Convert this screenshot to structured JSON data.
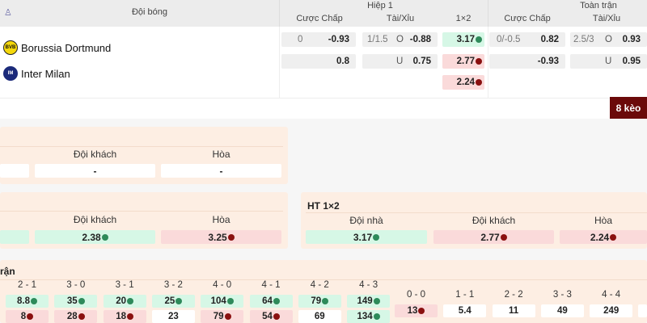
{
  "header": {
    "team_col": "Đội bóng",
    "first_half": "Hiệp 1",
    "full_time": "Toàn trận",
    "handicap": "Cược Chấp",
    "over_under": "Tài/Xỉu",
    "one_x_two": "1×2"
  },
  "teams": [
    {
      "name": "Borussia Dortmund",
      "logo_color": "#f5d80b"
    },
    {
      "name": "Inter Milan",
      "logo_color": "#1b2a7a"
    }
  ],
  "first_half": {
    "handicap": [
      {
        "line": "0",
        "odds": "-0.93"
      },
      {
        "line": "",
        "odds": "0.8"
      }
    ],
    "over_under": [
      {
        "line": "1/1.5",
        "side": "O",
        "odds": "-0.88"
      },
      {
        "line": "",
        "side": "U",
        "odds": "0.75"
      }
    ],
    "one_x_two": [
      {
        "odds": "3.17",
        "trend": "up"
      },
      {
        "odds": "2.77",
        "trend": "down"
      },
      {
        "odds": "2.24",
        "trend": "down"
      }
    ]
  },
  "full_time": {
    "handicap": [
      {
        "line": "0/-0.5",
        "odds": "0.82"
      },
      {
        "line": "",
        "odds": "-0.93"
      }
    ],
    "over_under": [
      {
        "line": "2.5/3",
        "side": "O",
        "odds": "0.93"
      },
      {
        "line": "",
        "side": "U",
        "odds": "0.95"
      }
    ]
  },
  "more_button": "8 kèo",
  "panel1": {
    "labels": [
      "Đội khách",
      "Hòa"
    ],
    "values": [
      "-",
      "-"
    ]
  },
  "panel2": {
    "labels": [
      "Đội khách",
      "Hòa"
    ],
    "values": [
      "2.38",
      "3.25"
    ]
  },
  "ht_panel": {
    "title": "HT 1×2",
    "labels": [
      "Đội nhà",
      "Đội khách",
      "Hòa"
    ],
    "values": [
      "3.17",
      "2.77",
      "2.24"
    ]
  },
  "score_panel": {
    "title": "rận",
    "scores": [
      "2 - 1",
      "3 - 0",
      "3 - 1",
      "3 - 2",
      "4 - 0",
      "4 - 1",
      "4 - 2",
      "4 - 3"
    ],
    "home": [
      "8.8",
      "35",
      "20",
      "25",
      "104",
      "64",
      "79",
      "149"
    ],
    "away": [
      "8",
      "28",
      "18",
      "23",
      "79",
      "54",
      "69",
      "134"
    ],
    "draw_scores": [
      "0 - 0",
      "1 - 1",
      "2 - 2",
      "3 - 3",
      "4 - 4"
    ],
    "draw_values": [
      "13",
      "5.4",
      "11",
      "49",
      "249"
    ]
  },
  "colors": {
    "up": "#2e8a5a",
    "down": "#8a1010",
    "button": "#6b0a0a",
    "panel": "#fdeee3"
  }
}
